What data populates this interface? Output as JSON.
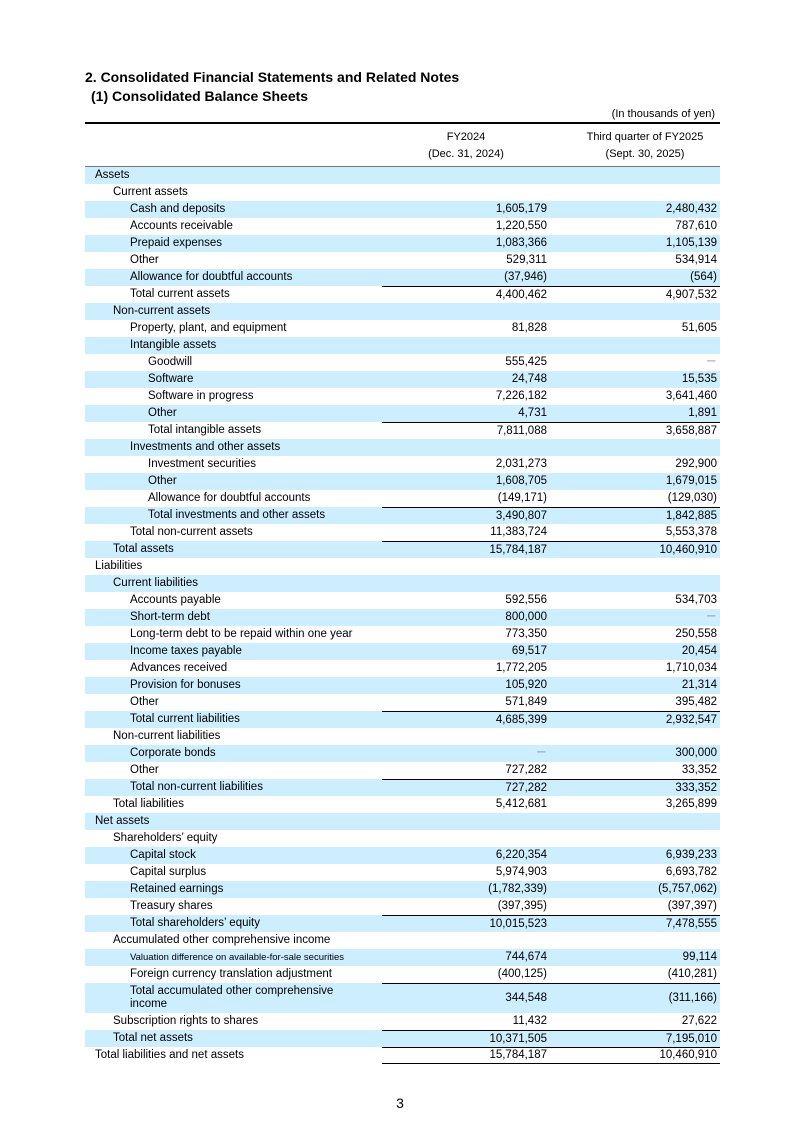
{
  "heading": "2. Consolidated Financial Statements and Related Notes",
  "subheading": "(1) Consolidated Balance Sheets",
  "unit": "(In thousands of yen)",
  "columns": [
    {
      "line1": "FY2024",
      "line2": "(Dec. 31, 2024)"
    },
    {
      "line1": "Third quarter of FY2025",
      "line2": "(Sept. 30, 2025)"
    }
  ],
  "rows": [
    {
      "label": "Assets",
      "level": 0,
      "a": "",
      "b": ""
    },
    {
      "label": "Current assets",
      "level": 1,
      "a": "",
      "b": ""
    },
    {
      "label": "Cash and deposits",
      "level": 2,
      "a": "1,605,179",
      "b": "2,480,432"
    },
    {
      "label": "Accounts receivable",
      "level": 2,
      "a": "1,220,550",
      "b": "787,610"
    },
    {
      "label": "Prepaid expenses",
      "level": 2,
      "a": "1,083,366",
      "b": "1,105,139"
    },
    {
      "label": "Other",
      "level": 2,
      "a": "529,311",
      "b": "534,914"
    },
    {
      "label": "Allowance for doubtful accounts",
      "level": 2,
      "a": "(37,946)",
      "b": "(564)"
    },
    {
      "label": "Total current assets",
      "level": 2,
      "a": "4,400,462",
      "b": "4,907,532",
      "total": true
    },
    {
      "label": "Non-current assets",
      "level": 1,
      "a": "",
      "b": ""
    },
    {
      "label": "Property, plant, and equipment",
      "level": 2,
      "a": "81,828",
      "b": "51,605"
    },
    {
      "label": "Intangible assets",
      "level": 2,
      "a": "",
      "b": ""
    },
    {
      "label": "Goodwill",
      "level": 3,
      "a": "555,425",
      "b": "－"
    },
    {
      "label": "Software",
      "level": 3,
      "a": "24,748",
      "b": "15,535"
    },
    {
      "label": "Software in progress",
      "level": 3,
      "a": "7,226,182",
      "b": "3,641,460"
    },
    {
      "label": "Other",
      "level": 3,
      "a": "4,731",
      "b": "1,891"
    },
    {
      "label": "Total intangible assets",
      "level": 3,
      "a": "7,811,088",
      "b": "3,658,887",
      "total": true
    },
    {
      "label": "Investments and other assets",
      "level": 2,
      "a": "",
      "b": ""
    },
    {
      "label": "Investment securities",
      "level": 3,
      "a": "2,031,273",
      "b": "292,900"
    },
    {
      "label": "Other",
      "level": 3,
      "a": "1,608,705",
      "b": "1,679,015"
    },
    {
      "label": "Allowance for doubtful accounts",
      "level": 3,
      "a": "(149,171)",
      "b": "(129,030)"
    },
    {
      "label": "Total investments and other assets",
      "level": 3,
      "a": "3,490,807",
      "b": "1,842,885",
      "total": true
    },
    {
      "label": "Total non-current assets",
      "level": 2,
      "a": "11,383,724",
      "b": "5,553,378"
    },
    {
      "label": "Total assets",
      "level": 1,
      "a": "15,784,187",
      "b": "10,460,910",
      "total": true
    },
    {
      "label": "Liabilities",
      "level": 0,
      "a": "",
      "b": ""
    },
    {
      "label": "Current liabilities",
      "level": 1,
      "a": "",
      "b": ""
    },
    {
      "label": "Accounts payable",
      "level": 2,
      "a": "592,556",
      "b": "534,703"
    },
    {
      "label": "Short-term debt",
      "level": 2,
      "a": "800,000",
      "b": "－"
    },
    {
      "label": "Long-term debt to be repaid within one year",
      "level": 2,
      "a": "773,350",
      "b": "250,558"
    },
    {
      "label": "Income taxes payable",
      "level": 2,
      "a": "69,517",
      "b": "20,454"
    },
    {
      "label": "Advances received",
      "level": 2,
      "a": "1,772,205",
      "b": "1,710,034"
    },
    {
      "label": "Provision for bonuses",
      "level": 2,
      "a": "105,920",
      "b": "21,314"
    },
    {
      "label": "Other",
      "level": 2,
      "a": "571,849",
      "b": "395,482"
    },
    {
      "label": "Total current liabilities",
      "level": 2,
      "a": "4,685,399",
      "b": "2,932,547",
      "total": true
    },
    {
      "label": "Non-current liabilities",
      "level": 1,
      "a": "",
      "b": ""
    },
    {
      "label": "Corporate bonds",
      "level": 2,
      "a": "－",
      "b": "300,000"
    },
    {
      "label": "Other",
      "level": 2,
      "a": "727,282",
      "b": "33,352"
    },
    {
      "label": "Total non-current liabilities",
      "level": 2,
      "a": "727,282",
      "b": "333,352",
      "total": true
    },
    {
      "label": "Total liabilities",
      "level": 1,
      "a": "5,412,681",
      "b": "3,265,899"
    },
    {
      "label": "Net assets",
      "level": 0,
      "a": "",
      "b": ""
    },
    {
      "label": "Shareholders’ equity",
      "level": 1,
      "a": "",
      "b": ""
    },
    {
      "label": "Capital stock",
      "level": 2,
      "a": "6,220,354",
      "b": "6,939,233"
    },
    {
      "label": "Capital surplus",
      "level": 2,
      "a": "5,974,903",
      "b": "6,693,782"
    },
    {
      "label": "Retained earnings",
      "level": 2,
      "a": "(1,782,339)",
      "b": "(5,757,062)"
    },
    {
      "label": "Treasury shares",
      "level": 2,
      "a": "(397,395)",
      "b": "(397,397)"
    },
    {
      "label": "Total shareholders’ equity",
      "level": 2,
      "a": "10,015,523",
      "b": "7,478,555",
      "total": true
    },
    {
      "label": "Accumulated other comprehensive income",
      "level": 1,
      "a": "",
      "b": ""
    },
    {
      "label": "Valuation difference on available-for-sale securities",
      "level": 2,
      "a": "744,674",
      "b": "99,114",
      "small": true
    },
    {
      "label": "Foreign currency translation adjustment",
      "level": 2,
      "a": "(400,125)",
      "b": "(410,281)"
    },
    {
      "label": "Total accumulated other comprehensive income",
      "level": 2,
      "a": "344,548",
      "b": "(311,166)",
      "total": true,
      "tall": true
    },
    {
      "label": "Subscription rights to shares",
      "level": 1,
      "a": "11,432",
      "b": "27,622"
    },
    {
      "label": "Total net assets",
      "level": 1,
      "a": "10,371,505",
      "b": "7,195,010",
      "total": true
    },
    {
      "label": "Total liabilities and net assets",
      "level": 0,
      "a": "15,784,187",
      "b": "10,460,910",
      "total": true,
      "last": true
    }
  ],
  "page_number": "3",
  "colors": {
    "shade": "#cdeefe"
  }
}
